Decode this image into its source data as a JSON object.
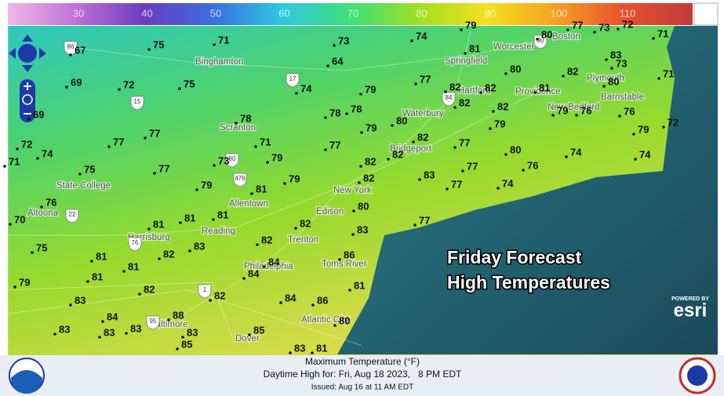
{
  "legend": {
    "ticks": [
      30,
      40,
      50,
      60,
      70,
      80,
      90,
      100,
      110
    ],
    "colors": [
      "#f0b8e8",
      "#c070d8",
      "#6a3cc0",
      "#3a6ee0",
      "#2ec8e0",
      "#3ee07a",
      "#9ee020",
      "#f6e020",
      "#f6a020",
      "#e85030",
      "#c03a3a"
    ]
  },
  "overlay_title": [
    "Friday Forecast",
    "High Temperatures"
  ],
  "cities": [
    "Binghamton",
    "Scranton",
    "State College",
    "Altoona",
    "Allentown",
    "Harrisburg",
    "Reading",
    "Philadelphia",
    "Trenton",
    "Edison",
    "New York",
    "Bridgeport",
    "Waterbury",
    "Hartford",
    "Springfield",
    "Worcester",
    "Boston",
    "Providence",
    "New Bedford",
    "Barnstable",
    "Plymouth",
    "Toms River",
    "Atlantic City",
    "Baltimore",
    "Dover"
  ],
  "highways": [
    86,
    15,
    17,
    80,
    476,
    22,
    76,
    84,
    90,
    1,
    95
  ],
  "temperatures": [
    67,
    75,
    71,
    73,
    74,
    79,
    80,
    77,
    73,
    72,
    71,
    69,
    69,
    72,
    75,
    64,
    74,
    79,
    77,
    82,
    81,
    80,
    82,
    83,
    73,
    71,
    80,
    82,
    82,
    82,
    81,
    79,
    76,
    76,
    72,
    79,
    78,
    78,
    78,
    79,
    80,
    82,
    82,
    77,
    79,
    72,
    74,
    77,
    77,
    71,
    79,
    73,
    77,
    82,
    77,
    80,
    76,
    74,
    74,
    71,
    75,
    77,
    79,
    81,
    79,
    82,
    83,
    77,
    74,
    76,
    70,
    80,
    77,
    81,
    81,
    81,
    82,
    83,
    75,
    81,
    82,
    83,
    82,
    81,
    81,
    84,
    84,
    86,
    81,
    79,
    82,
    82,
    83,
    84,
    86,
    80,
    84,
    88,
    83,
    83,
    83,
    83,
    85,
    85,
    83,
    81
  ],
  "footer": {
    "title": "Maximum Temperature (°F)",
    "valid": "Daytime High for: Fri, Aug 18 2023,   8 PM EDT",
    "issued": "Issued: Aug 16 at 11 AM EDT"
  },
  "attribution": {
    "powered_by": "POWERED BY",
    "brand": "esri"
  }
}
